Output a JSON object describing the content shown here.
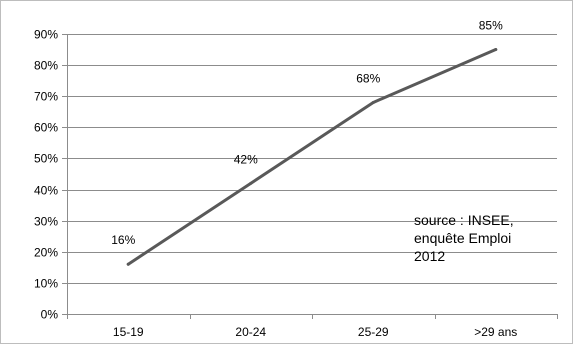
{
  "chart_data": {
    "type": "line",
    "categories": [
      "15-19",
      "20-24",
      "25-29",
      ">29 ans"
    ],
    "series": [
      {
        "values": [
          16,
          42,
          68,
          85
        ]
      }
    ],
    "data_labels": [
      "16%",
      "42%",
      "68%",
      "85%"
    ],
    "y_ticks": [
      "0%",
      "10%",
      "20%",
      "30%",
      "40%",
      "50%",
      "60%",
      "70%",
      "80%",
      "90%"
    ],
    "ylim": [
      0,
      90
    ],
    "grid": true,
    "legend": "none",
    "annotation": [
      "source : INSEE,",
      "enquête Emploi",
      "2012"
    ],
    "colors": {
      "line": "#595959",
      "grid": "#8c8c8c",
      "axis": "#8c8c8c",
      "text": "#000000"
    }
  }
}
